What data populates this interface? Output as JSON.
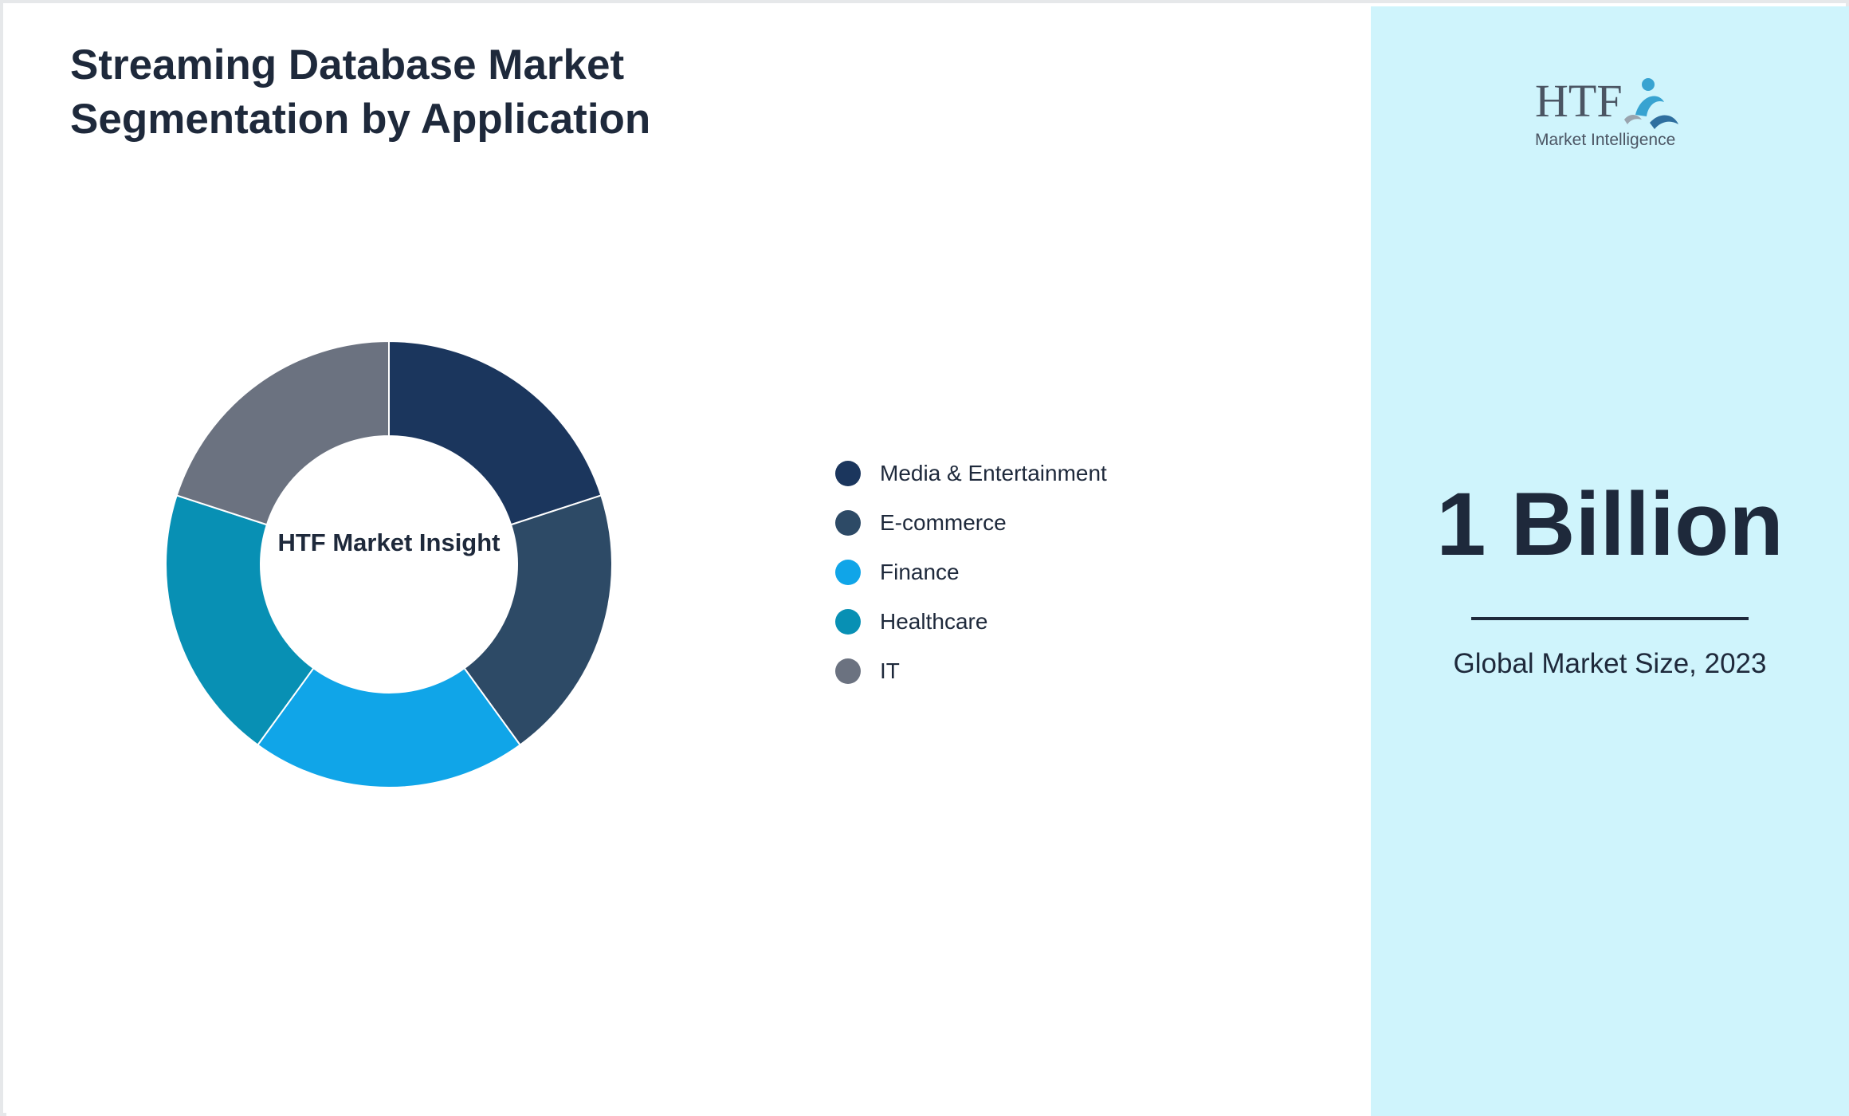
{
  "title": "Streaming Database Market Segmentation by Application",
  "center_label": "HTF Market Insight",
  "market": {
    "value": "1 Billion",
    "caption": "Global Market Size, 2023"
  },
  "logo": {
    "brand": "HTF",
    "tagline": "Market Intelligence"
  },
  "chart_data": {
    "type": "pie",
    "style": "donut",
    "categories": [
      "Media & Entertainment",
      "E-commerce",
      "Finance",
      "Healthcare",
      "IT"
    ],
    "values": [
      20,
      20,
      20,
      20,
      20
    ],
    "colors": [
      "#1b365d",
      "#2d4a66",
      "#10a5e8",
      "#0890b4",
      "#6b7280"
    ],
    "legend_position": "right"
  }
}
